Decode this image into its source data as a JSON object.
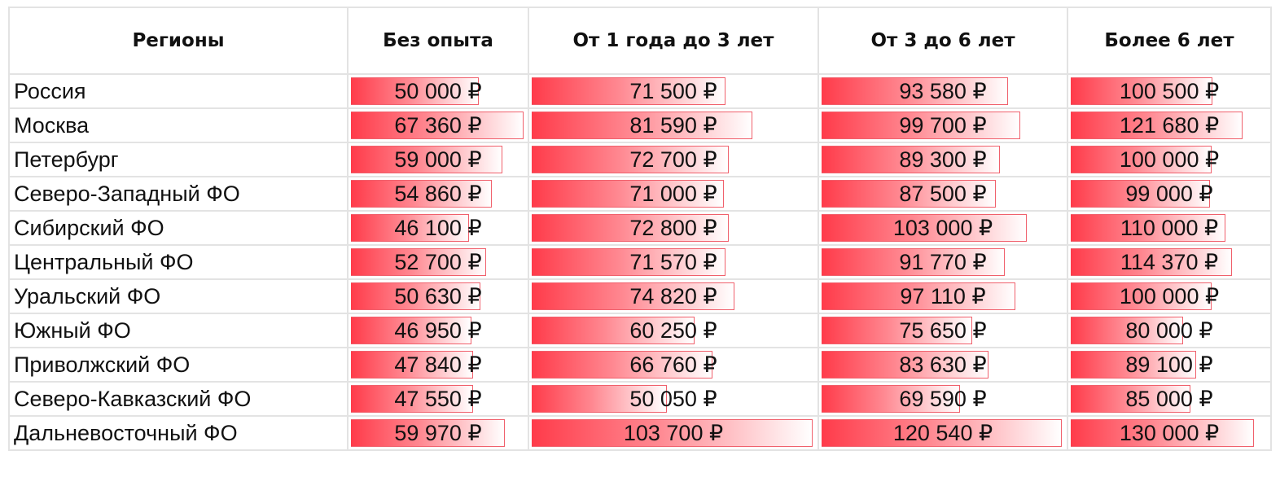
{
  "chart_data": {
    "type": "table",
    "columns": [
      "Регионы",
      "Без опыта",
      "От 1 года до 3 лет",
      "От 3 до 6 лет",
      "Более 6 лет"
    ],
    "rows": [
      {
        "region": "Россия",
        "cells": [
          "50 000 ₽",
          "71 500 ₽",
          "93 580 ₽",
          "100 500 ₽"
        ],
        "values": [
          50000,
          71500,
          93580,
          100500
        ]
      },
      {
        "region": "Москва",
        "cells": [
          "67 360 ₽",
          "81 590 ₽",
          "99 700 ₽",
          "121 680 ₽"
        ],
        "values": [
          67360,
          81590,
          99700,
          121680
        ]
      },
      {
        "region": "Петербург",
        "cells": [
          "59 000 ₽",
          "72 700 ₽",
          "89 300 ₽",
          "100 000 ₽"
        ],
        "values": [
          59000,
          72700,
          89300,
          100000
        ]
      },
      {
        "region": "Северо-Западный ФО",
        "cells": [
          "54 860 ₽",
          "71 000 ₽",
          "87 500 ₽",
          "99 000 ₽"
        ],
        "values": [
          54860,
          71000,
          87500,
          99000
        ]
      },
      {
        "region": "Сибирский ФО",
        "cells": [
          "46 100 ₽",
          "72 800 ₽",
          "103 000 ₽",
          "110 000 ₽"
        ],
        "values": [
          46100,
          72800,
          103000,
          110000
        ]
      },
      {
        "region": "Центральный ФО",
        "cells": [
          "52 700 ₽",
          "71 570 ₽",
          "91 770 ₽",
          "114 370 ₽"
        ],
        "values": [
          52700,
          71570,
          91770,
          114370
        ]
      },
      {
        "region": "Уральский ФО",
        "cells": [
          "50 630 ₽",
          "74 820 ₽",
          "97 110 ₽",
          "100 000 ₽"
        ],
        "values": [
          50630,
          74820,
          97110,
          100000
        ]
      },
      {
        "region": "Южный ФО",
        "cells": [
          "46 950 ₽",
          "60 250 ₽",
          "75 650 ₽",
          "80 000 ₽"
        ],
        "values": [
          46950,
          60250,
          75650,
          80000
        ]
      },
      {
        "region": "Приволжский ФО",
        "cells": [
          "47 840 ₽",
          "66 760 ₽",
          "83 630 ₽",
          "89 100 ₽"
        ],
        "values": [
          47840,
          66760,
          83630,
          89100
        ]
      },
      {
        "region": "Северо-Кавказский ФО",
        "cells": [
          "47 550 ₽",
          "50 050 ₽",
          "69 590 ₽",
          "85 000 ₽"
        ],
        "values": [
          47550,
          50050,
          69590,
          85000
        ]
      },
      {
        "region": "Дальневосточный ФО",
        "cells": [
          "59 970 ₽",
          "103 700 ₽",
          "120 540 ₽",
          "130 000 ₽"
        ],
        "values": [
          59970,
          103700,
          120540,
          130000
        ]
      }
    ],
    "colors": {
      "bar_start": "#ff3b4a",
      "bar_mid": "#ff8891",
      "bar_end": "#ffffff",
      "bar_border": "#f0606c",
      "grid": "#e3e3e3"
    }
  }
}
